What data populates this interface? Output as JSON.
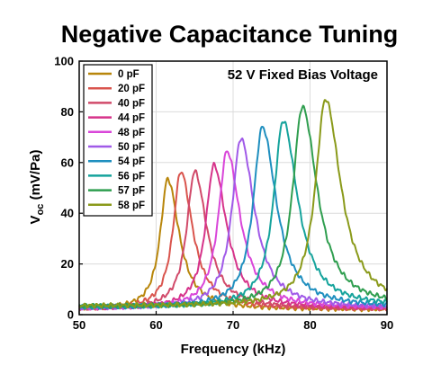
{
  "chart_data": {
    "type": "line",
    "title": "Negative Capacitance Tuning",
    "xlabel": "Frequency (kHz)",
    "ylabel_main": "V",
    "ylabel_sub": "oc",
    "ylabel_unit": " (mV/Pa)",
    "annotation": "52 V Fixed Bias Voltage",
    "xlim": [
      50,
      90
    ],
    "ylim": [
      0,
      100
    ],
    "xticks": [
      "50",
      "60",
      "70",
      "80",
      "90"
    ],
    "yticks": [
      "0",
      "20",
      "40",
      "60",
      "80",
      "100"
    ],
    "grid": true,
    "legend_position": "top-left",
    "series": [
      {
        "name": "0 pF",
        "color": "#b8860b",
        "peak_x": 61.5,
        "peak_y": 53.5,
        "base": 2.0
      },
      {
        "name": "20 pF",
        "color": "#d9544d",
        "peak_x": 63.2,
        "peak_y": 56.5,
        "base": 2.2
      },
      {
        "name": "40 pF",
        "color": "#d14a6a",
        "peak_x": 65.0,
        "peak_y": 56.5,
        "base": 2.3
      },
      {
        "name": "44 pF",
        "color": "#d6338a",
        "peak_x": 67.5,
        "peak_y": 59.0,
        "base": 2.4
      },
      {
        "name": "48 pF",
        "color": "#d946d9",
        "peak_x": 69.2,
        "peak_y": 64.5,
        "base": 2.5
      },
      {
        "name": "50 pF",
        "color": "#a05ae8",
        "peak_x": 71.0,
        "peak_y": 69.5,
        "base": 2.6
      },
      {
        "name": "54 pF",
        "color": "#1f8fbf",
        "peak_x": 73.8,
        "peak_y": 74.0,
        "base": 2.8
      },
      {
        "name": "56 pF",
        "color": "#15a39c",
        "peak_x": 76.5,
        "peak_y": 76.5,
        "base": 3.0
      },
      {
        "name": "57 pF",
        "color": "#2f9e4f",
        "peak_x": 79.0,
        "peak_y": 82.0,
        "base": 3.2
      },
      {
        "name": "58 pF",
        "color": "#8a9a1a",
        "peak_x": 82.0,
        "peak_y": 85.0,
        "base": 3.4
      }
    ]
  }
}
